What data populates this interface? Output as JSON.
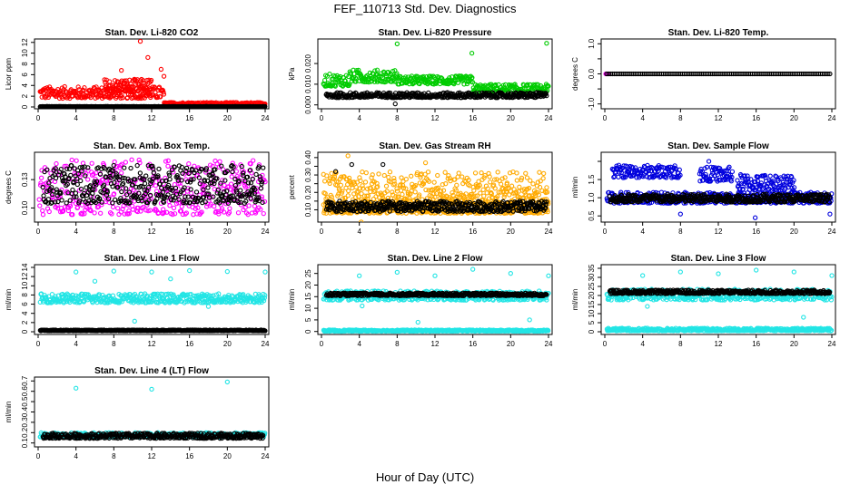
{
  "figure": {
    "title": "FEF_110713  Std. Dev. Diagnostics",
    "xlabel": "Hour of Day (UTC)"
  },
  "chart_data": [
    {
      "type": "scatter",
      "title": "Stan. Dev. Li-820 CO2",
      "ylabel": "Licor ppm",
      "xlim": [
        0,
        24
      ],
      "xticks": [
        0,
        4,
        8,
        12,
        16,
        20,
        24
      ],
      "ylim": [
        0,
        12.3
      ],
      "yticks": [
        0,
        2,
        4,
        6,
        8,
        10,
        12
      ],
      "series": [
        {
          "color": "#ff0000",
          "pattern": [
            {
              "x0": 0.2,
              "x1": 13.3,
              "base": 1.6,
              "spread": 2.2
            },
            {
              "x0": 7.0,
              "x1": 12.0,
              "base": 2.8,
              "spread": 2.4
            },
            {
              "x0": 13.3,
              "x1": 24.0,
              "base": 0.45,
              "spread": 0.4
            }
          ],
          "outliers": [
            [
              10.8,
              12.2
            ],
            [
              11.6,
              9.2
            ],
            [
              13.0,
              7.0
            ],
            [
              13.3,
              5.7
            ],
            [
              8.8,
              6.8
            ]
          ]
        },
        {
          "color": "#000000",
          "pattern": [
            {
              "x0": 0.2,
              "x1": 24.0,
              "base": 0.05,
              "spread": 0.05
            }
          ],
          "outliers": []
        }
      ]
    },
    {
      "type": "scatter",
      "title": "Stan. Dev. Li-820 Pressure",
      "ylabel": "kPa",
      "xlim": [
        0,
        24
      ],
      "xticks": [
        0,
        4,
        8,
        12,
        16,
        20,
        24
      ],
      "ylim": [
        -0.001,
        0.031
      ],
      "yticks": [
        0.0,
        0.01,
        0.02
      ],
      "yticklabels": [
        "0.000",
        "0.010",
        "0.020"
      ],
      "series": [
        {
          "color": "#00cc00",
          "pattern": [
            {
              "x0": 0.2,
              "x1": 3.0,
              "base": 0.009,
              "spread": 0.006
            },
            {
              "x0": 3.0,
              "x1": 8.0,
              "base": 0.011,
              "spread": 0.006
            },
            {
              "x0": 8.0,
              "x1": 16.0,
              "base": 0.01,
              "spread": 0.004
            },
            {
              "x0": 16.0,
              "x1": 24.0,
              "base": 0.006,
              "spread": 0.004
            }
          ],
          "outliers": [
            [
              8.0,
              0.0295
            ],
            [
              15.9,
              0.025
            ],
            [
              23.8,
              0.0298
            ]
          ]
        },
        {
          "color": "#000000",
          "pattern": [
            {
              "x0": 0.5,
              "x1": 23.8,
              "base": 0.0035,
              "spread": 0.0025
            }
          ],
          "outliers": [
            [
              7.8,
              0.0005
            ]
          ]
        }
      ]
    },
    {
      "type": "scatter",
      "title": "Stan. Dev. Li-820 Temp.",
      "ylabel": "degrees C",
      "xlim": [
        0,
        24
      ],
      "xticks": [
        0,
        4,
        8,
        12,
        16,
        20,
        24
      ],
      "ylim": [
        -1.1,
        1.1
      ],
      "yticks": [
        -1.0,
        -0.5,
        0.0,
        0.5,
        1.0
      ],
      "yticklabels": [
        "-1.0",
        "",
        "0.0",
        "",
        "1.0"
      ],
      "series": [
        {
          "color": "#ff00ff",
          "pattern": [
            {
              "x0": 0.1,
              "x1": 0.4,
              "base": 0.0,
              "spread": 0.0
            }
          ],
          "outliers": []
        },
        {
          "color": "#000000",
          "pattern": [
            {
              "x0": 0.2,
              "x1": 23.8,
              "base": 0.0,
              "spread": 0.0
            }
          ],
          "outliers": []
        }
      ]
    },
    {
      "type": "scatter",
      "title": "Stan. Dev. Amb. Box Temp.",
      "ylabel": "degrees C",
      "xlim": [
        0,
        24
      ],
      "xticks": [
        0,
        4,
        8,
        12,
        16,
        20,
        24
      ],
      "ylim": [
        0.087,
        0.157
      ],
      "yticks": [
        0.1,
        0.13
      ],
      "yticklabels": [
        "0.10",
        "0.13"
      ],
      "series": [
        {
          "color": "#ff00ff",
          "pattern": [
            {
              "x0": 0.1,
              "x1": 24.0,
              "base": 0.093,
              "spread": 0.058
            }
          ],
          "outliers": []
        },
        {
          "color": "#000000",
          "pattern": [
            {
              "x0": 0.5,
              "x1": 23.8,
              "base": 0.105,
              "spread": 0.04
            }
          ],
          "outliers": []
        }
      ]
    },
    {
      "type": "scatter",
      "title": "Stan. Dev. Gas Stream RH",
      "ylabel": "percent",
      "xlim": [
        0,
        24
      ],
      "xticks": [
        0,
        4,
        8,
        12,
        16,
        20,
        24
      ],
      "ylim": [
        0.04,
        0.42
      ],
      "yticks": [
        0.1,
        0.15,
        0.2,
        0.25,
        0.3,
        0.35,
        0.4
      ],
      "yticklabels": [
        "0.10",
        "",
        "0.20",
        "",
        "0.30",
        "",
        "0.40"
      ],
      "series": [
        {
          "color": "#ffaa00",
          "pattern": [
            {
              "x0": 0.2,
              "x1": 24.0,
              "base": 0.08,
              "spread": 0.06
            },
            {
              "x0": 0.2,
              "x1": 24.0,
              "base": 0.14,
              "spread": 0.18
            }
          ],
          "outliers": [
            [
              2.8,
              0.41
            ],
            [
              4.2,
              0.03
            ],
            [
              11.0,
              0.37
            ]
          ]
        },
        {
          "color": "#000000",
          "pattern": [
            {
              "x0": 0.5,
              "x1": 23.8,
              "base": 0.09,
              "spread": 0.06
            }
          ],
          "outliers": [
            [
              3.2,
              0.36
            ],
            [
              6.5,
              0.36
            ],
            [
              1.5,
              0.32
            ]
          ]
        }
      ]
    },
    {
      "type": "scatter",
      "title": "Stan. Dev. Sample Flow",
      "ylabel": "ml/min",
      "xlim": [
        0,
        24
      ],
      "xticks": [
        0,
        4,
        8,
        12,
        16,
        20,
        24
      ],
      "ylim": [
        0.38,
        2.2
      ],
      "yticks": [
        0.5,
        1.0,
        1.5,
        2.0
      ],
      "yticklabels": [
        "0.5",
        "1.0",
        "1.5",
        ""
      ],
      "series": [
        {
          "color": "#0000dd",
          "pattern": [
            {
              "x0": 0.2,
              "x1": 24.0,
              "base": 0.85,
              "spread": 0.3
            },
            {
              "x0": 0.8,
              "x1": 8.0,
              "base": 1.55,
              "spread": 0.35
            },
            {
              "x0": 10.0,
              "x1": 13.5,
              "base": 1.45,
              "spread": 0.4
            },
            {
              "x0": 14.0,
              "x1": 20.0,
              "base": 1.2,
              "spread": 0.45
            }
          ],
          "outliers": [
            [
              11.0,
              2.0
            ],
            [
              15.9,
              0.45
            ],
            [
              23.8,
              0.55
            ],
            [
              8.0,
              0.55
            ]
          ]
        },
        {
          "color": "#000000",
          "pattern": [
            {
              "x0": 0.5,
              "x1": 23.8,
              "base": 0.88,
              "spread": 0.22
            }
          ],
          "outliers": []
        }
      ]
    },
    {
      "type": "scatter",
      "title": "Stan. Dev. Line 1 Flow",
      "ylabel": "ml/min",
      "xlim": [
        0,
        24
      ],
      "xticks": [
        0,
        4,
        8,
        12,
        16,
        20,
        24
      ],
      "ylim": [
        -0.2,
        14.2
      ],
      "yticks": [
        0,
        2,
        4,
        6,
        8,
        10,
        12,
        14
      ],
      "yticklabels": [
        "0",
        "2",
        "4",
        "6",
        "8",
        "10",
        "12",
        "14"
      ],
      "series": [
        {
          "color": "#22e5e5",
          "pattern": [
            {
              "x0": 0.2,
              "x1": 24.0,
              "base": 6.3,
              "spread": 2.0
            }
          ],
          "outliers": [
            [
              4.0,
              13.0
            ],
            [
              8.0,
              13.2
            ],
            [
              12.0,
              13.0
            ],
            [
              16.0,
              13.3
            ],
            [
              20.0,
              13.1
            ],
            [
              24.0,
              13.0
            ],
            [
              10.2,
              2.3
            ],
            [
              18.0,
              5.5
            ],
            [
              6.0,
              11.0
            ],
            [
              14.0,
              11.5
            ]
          ]
        },
        {
          "color": "#000000",
          "pattern": [
            {
              "x0": 0.2,
              "x1": 24.0,
              "base": 0.2,
              "spread": 0.2
            }
          ],
          "outliers": []
        }
      ]
    },
    {
      "type": "scatter",
      "title": "Stan. Dev. Line 2 Flow",
      "ylabel": "ml/min",
      "xlim": [
        0,
        24
      ],
      "xticks": [
        0,
        4,
        8,
        12,
        16,
        20,
        24
      ],
      "ylim": [
        -0.5,
        28
      ],
      "yticks": [
        0,
        5,
        10,
        15,
        20,
        25
      ],
      "yticklabels": [
        "0",
        "5",
        "10",
        "15",
        "20",
        "25"
      ],
      "series": [
        {
          "color": "#22e5e5",
          "pattern": [
            {
              "x0": 0.2,
              "x1": 24.0,
              "base": 13.5,
              "spread": 4.0
            },
            {
              "x0": 0.2,
              "x1": 24.0,
              "base": 0.1,
              "spread": 0.6
            }
          ],
          "outliers": [
            [
              4.0,
              24.0
            ],
            [
              8.0,
              25.5
            ],
            [
              12.0,
              24.0
            ],
            [
              16.0,
              26.8
            ],
            [
              20.0,
              25.0
            ],
            [
              24.0,
              24.0
            ],
            [
              10.2,
              4.0
            ],
            [
              22.0,
              5.0
            ],
            [
              4.3,
              11.0
            ]
          ]
        },
        {
          "color": "#000000",
          "pattern": [
            {
              "x0": 0.5,
              "x1": 23.8,
              "base": 15.4,
              "spread": 1.2
            }
          ],
          "outliers": []
        }
      ]
    },
    {
      "type": "scatter",
      "title": "Stan. Dev. Line 3 Flow",
      "ylabel": "ml/min",
      "xlim": [
        0,
        24
      ],
      "xticks": [
        0,
        4,
        8,
        12,
        16,
        20,
        24
      ],
      "ylim": [
        -0.5,
        36
      ],
      "yticks": [
        0,
        5,
        10,
        15,
        20,
        25,
        30,
        35
      ],
      "yticklabels": [
        "0",
        "5",
        "10",
        "15",
        "20",
        "25",
        "30",
        "35"
      ],
      "series": [
        {
          "color": "#22e5e5",
          "pattern": [
            {
              "x0": 0.2,
              "x1": 24.0,
              "base": 17.5,
              "spread": 6.0
            },
            {
              "x0": 0.2,
              "x1": 24.0,
              "base": 0.5,
              "spread": 1.5
            }
          ],
          "outliers": [
            [
              4.0,
              31.0
            ],
            [
              8.0,
              33.0
            ],
            [
              12.0,
              32.0
            ],
            [
              16.0,
              34.0
            ],
            [
              20.0,
              33.0
            ],
            [
              24.0,
              31.0
            ],
            [
              21.0,
              8.0
            ],
            [
              4.5,
              14.0
            ]
          ]
        },
        {
          "color": "#000000",
          "pattern": [
            {
              "x0": 0.5,
              "x1": 23.8,
              "base": 21.0,
              "spread": 2.0
            }
          ],
          "outliers": []
        }
      ]
    },
    {
      "type": "scatter",
      "title": "Stan. Dev. Line 4 (LT) Flow",
      "ylabel": "ml/min",
      "xlim": [
        0,
        24
      ],
      "xticks": [
        0,
        4,
        8,
        12,
        16,
        20,
        24
      ],
      "ylim": [
        0.08,
        0.72
      ],
      "yticks": [
        0.1,
        0.2,
        0.3,
        0.4,
        0.5,
        0.6,
        0.7
      ],
      "yticklabels": [
        "0.1",
        "0.2",
        "0.3",
        "0.4",
        "0.5",
        "0.6",
        "0.7"
      ],
      "series": [
        {
          "color": "#22e5e5",
          "pattern": [
            {
              "x0": 0.2,
              "x1": 24.0,
              "base": 0.155,
              "spread": 0.045
            }
          ],
          "outliers": [
            [
              4.0,
              0.63
            ],
            [
              12.0,
              0.62
            ],
            [
              20.0,
              0.69
            ]
          ]
        },
        {
          "color": "#000000",
          "pattern": [
            {
              "x0": 0.5,
              "x1": 23.8,
              "base": 0.145,
              "spread": 0.05
            }
          ],
          "outliers": []
        }
      ]
    }
  ]
}
